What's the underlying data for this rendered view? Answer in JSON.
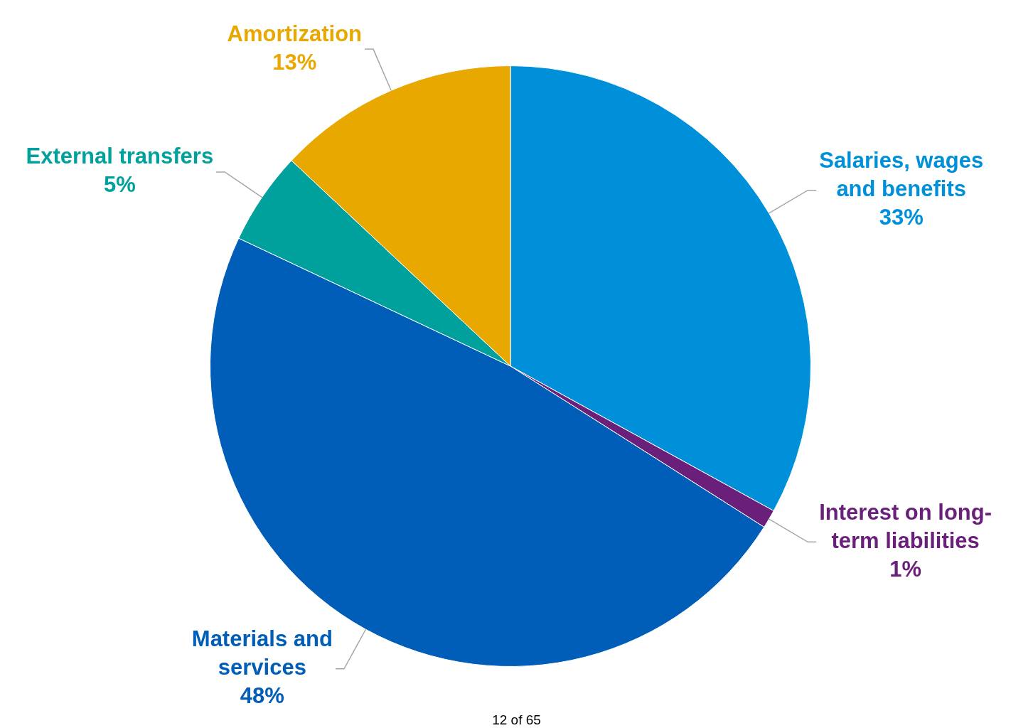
{
  "chart_data": {
    "type": "pie",
    "categories": [
      "Salaries, wages and benefits",
      "Interest on long-term liabilities",
      "Materials and services",
      "External transfers",
      "Amortization"
    ],
    "values": [
      33,
      1,
      48,
      5,
      13
    ],
    "value_labels": [
      "33%",
      "1%",
      "48%",
      "5%",
      "13%"
    ],
    "colors": [
      "#0090da",
      "#6a1f7a",
      "#005eb8",
      "#00a19c",
      "#e9a800"
    ],
    "legend": false,
    "annotations": [
      "12 of 65"
    ]
  }
}
